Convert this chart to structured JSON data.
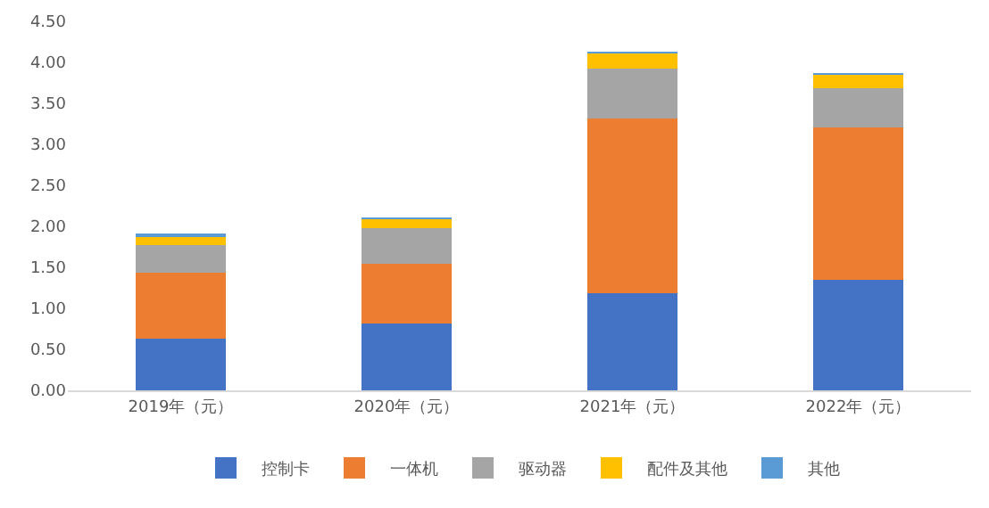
{
  "chart_data": {
    "type": "bar",
    "stacked": true,
    "categories": [
      "2019年（元）",
      "2020年（元）",
      "2021年（元）",
      "2022年（元）"
    ],
    "series": [
      {
        "name": "控制卡",
        "color": "#4472c4",
        "values": [
          0.63,
          0.81,
          1.19,
          1.35
        ]
      },
      {
        "name": "一体机",
        "color": "#ed7d31",
        "values": [
          0.8,
          0.73,
          2.13,
          1.86
        ]
      },
      {
        "name": "驱动器",
        "color": "#a5a5a5",
        "values": [
          0.34,
          0.44,
          0.6,
          0.48
        ]
      },
      {
        "name": "配件及其他",
        "color": "#ffc000",
        "values": [
          0.12,
          0.11,
          0.2,
          0.16
        ]
      },
      {
        "name": "其他",
        "color": "#5b9bd5",
        "values": [
          0.01,
          0.01,
          0.01,
          0.01
        ]
      }
    ],
    "ylim": [
      0,
      4.5
    ],
    "yticks": [
      {
        "value": 0,
        "label": "0.00"
      },
      {
        "value": 0.5,
        "label": "0.50"
      },
      {
        "value": 1,
        "label": "1.00"
      },
      {
        "value": 1.5,
        "label": "1.50"
      },
      {
        "value": 2,
        "label": "2.00"
      },
      {
        "value": 2.5,
        "label": "2.50"
      },
      {
        "value": 3,
        "label": "3.00"
      },
      {
        "value": 3.5,
        "label": "3.50"
      },
      {
        "value": 4,
        "label": "4.00"
      },
      {
        "value": 4.5,
        "label": "4.50"
      }
    ],
    "grid": false,
    "legend": "bottom"
  }
}
